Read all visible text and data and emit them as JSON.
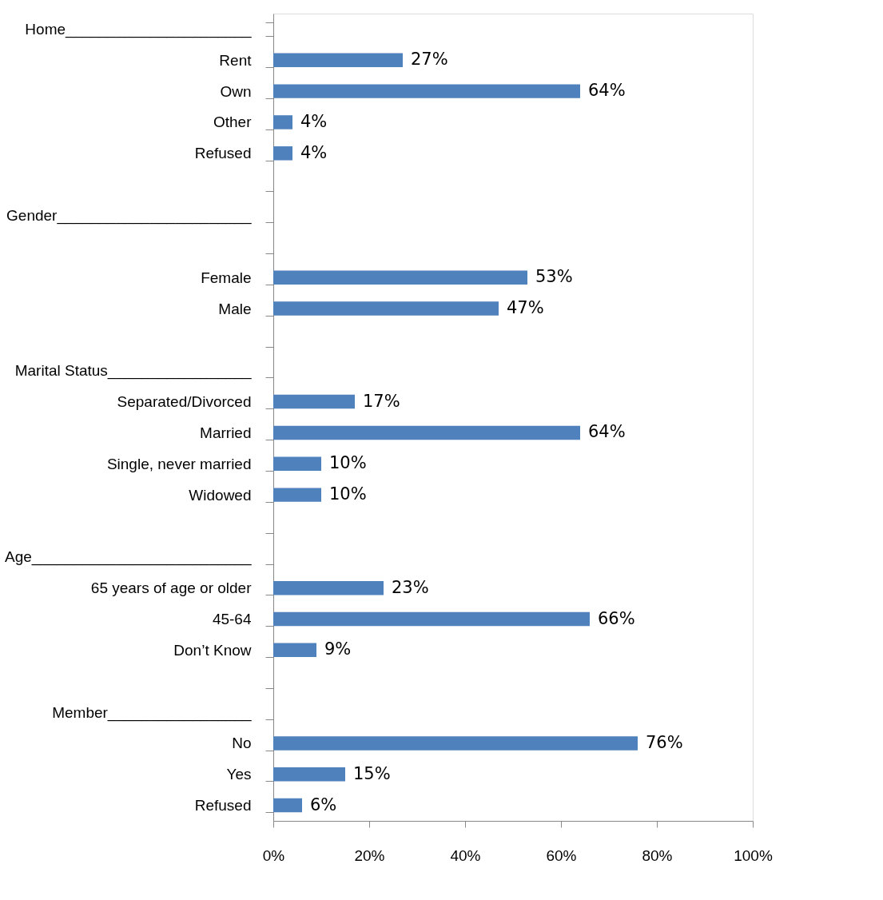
{
  "chart_data": {
    "type": "bar",
    "orientation": "horizontal",
    "categories": [
      "Home______________________",
      "Rent",
      "Own",
      "Other",
      "Refused",
      null,
      "Gender_______________________",
      null,
      "Female",
      "Male",
      null,
      "Marital Status_________________",
      "Separated/Divorced",
      "Married",
      "Single, never married",
      "Widowed",
      null,
      "Age__________________________",
      "65 years of age or older",
      "45-64",
      "Don’t Know",
      null,
      "Member_________________",
      "No",
      "Yes",
      "Refused"
    ],
    "values": [
      null,
      27,
      64,
      4,
      4,
      null,
      null,
      null,
      53,
      47,
      null,
      null,
      17,
      64,
      10,
      10,
      null,
      null,
      23,
      66,
      9,
      null,
      null,
      76,
      15,
      6
    ],
    "value_labels": [
      null,
      "27%",
      "64%",
      "4%",
      "4%",
      null,
      null,
      null,
      "53%",
      "47%",
      null,
      null,
      "17%",
      "64%",
      "10%",
      "10%",
      null,
      null,
      "23%",
      "66%",
      "9%",
      null,
      null,
      "76%",
      "15%",
      "6%"
    ],
    "color": "#4f81bd",
    "xlim": [
      0,
      100
    ],
    "xticks": [
      {
        "value": 0,
        "label": "0%"
      },
      {
        "value": 20,
        "label": "20%"
      },
      {
        "value": 40,
        "label": "40%"
      },
      {
        "value": 60,
        "label": "60%"
      },
      {
        "value": 80,
        "label": "80%"
      },
      {
        "value": 100,
        "label": "100%"
      }
    ],
    "grid": false
  }
}
